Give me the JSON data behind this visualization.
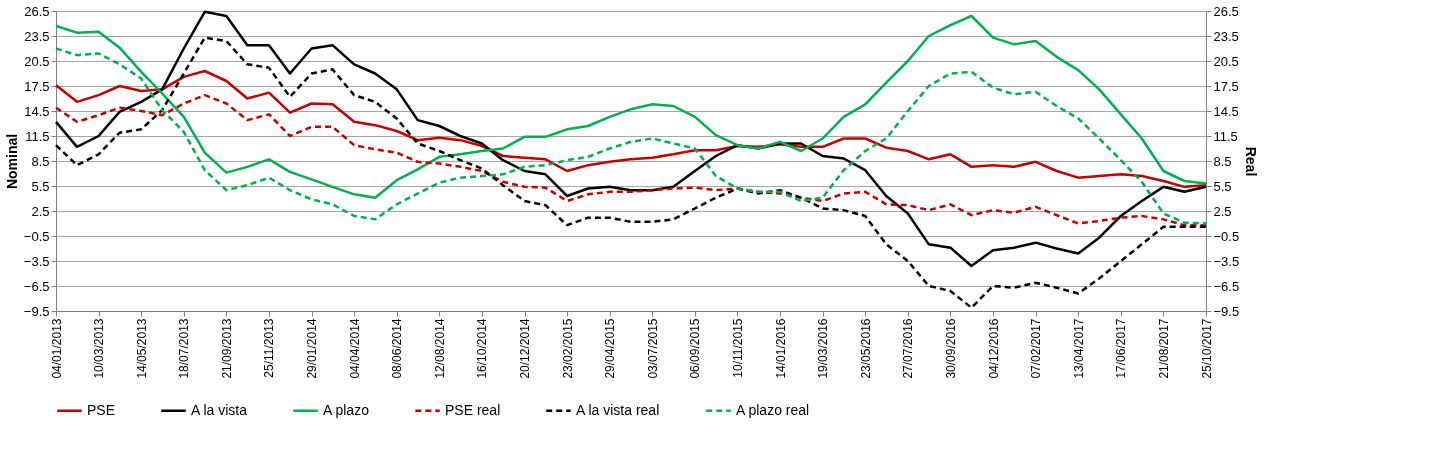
{
  "chart_data": {
    "type": "line",
    "ylabel": "Nominal",
    "y2label": "Real",
    "x": [
      "2013-01-04",
      "2013-02-05",
      "2013-03-10",
      "2013-04-11",
      "2013-05-14",
      "2013-06-15",
      "2013-07-18",
      "2013-08-19",
      "2013-09-21",
      "2013-10-23",
      "2013-11-25",
      "2013-12-27",
      "2014-01-29",
      "2014-03-02",
      "2014-04-04",
      "2014-05-06",
      "2014-06-08",
      "2014-07-10",
      "2014-08-12",
      "2014-09-13",
      "2014-10-16",
      "2014-11-17",
      "2014-12-20",
      "2015-01-21",
      "2015-02-23",
      "2015-03-27",
      "2015-04-29",
      "2015-05-31",
      "2015-07-03",
      "2015-08-04",
      "2015-09-06",
      "2015-10-08",
      "2015-11-10",
      "2015-12-12",
      "2016-01-14",
      "2016-02-15",
      "2016-03-19",
      "2016-04-20",
      "2016-05-23",
      "2016-06-24",
      "2016-07-27",
      "2016-08-28",
      "2016-09-30",
      "2016-11-01",
      "2016-12-04",
      "2017-01-05",
      "2017-02-07",
      "2017-03-11",
      "2017-04-13",
      "2017-05-15",
      "2017-06-17",
      "2017-07-19",
      "2017-08-21",
      "2017-09-22",
      "2017-10-25"
    ],
    "series": [
      {
        "name": "PSE",
        "color": "#c00000",
        "line_style": "solid",
        "values": [
          17.6,
          15.6,
          16.4,
          17.5,
          16.9,
          17.1,
          18.6,
          19.3,
          18.1,
          16.0,
          16.7,
          14.3,
          15.4,
          15.3,
          13.2,
          12.8,
          12.1,
          11.0,
          11.3,
          11.0,
          10.3,
          9.1,
          8.9,
          8.7,
          7.3,
          8.0,
          8.4,
          8.7,
          8.9,
          9.3,
          9.8,
          9.8,
          10.3,
          10.2,
          10.5,
          10.2,
          10.2,
          11.2,
          11.2,
          10.1,
          9.7,
          8.7,
          9.3,
          7.8,
          8.0,
          7.8,
          8.4,
          7.3,
          6.5,
          6.7,
          6.9,
          6.7,
          6.1,
          5.4,
          5.6
        ]
      },
      {
        "name": "A la vista",
        "color": "#000000",
        "line_style": "solid",
        "values": [
          13.2,
          10.2,
          11.5,
          14.4,
          15.6,
          17.1,
          22.0,
          26.4,
          25.9,
          22.4,
          22.4,
          19.0,
          22.0,
          22.4,
          20.1,
          19.0,
          17.1,
          13.4,
          12.7,
          11.5,
          10.6,
          8.6,
          7.3,
          6.9,
          4.3,
          5.2,
          5.4,
          5.0,
          5.0,
          5.4,
          7.3,
          9.1,
          10.4,
          10.0,
          10.6,
          10.6,
          9.1,
          8.8,
          7.4,
          4.3,
          2.2,
          -1.5,
          -1.9,
          -4.1,
          -2.2,
          -1.9,
          -1.3,
          -2.0,
          -2.6,
          -0.7,
          1.9,
          3.7,
          5.4,
          4.8,
          5.4
        ]
      },
      {
        "name": "A plazo",
        "color": "#00b050",
        "line_style": "solid",
        "values": [
          24.7,
          23.9,
          24.0,
          22.1,
          19.2,
          16.6,
          13.8,
          9.5,
          7.1,
          7.8,
          8.7,
          7.2,
          6.3,
          5.4,
          4.5,
          4.1,
          6.2,
          7.5,
          9.0,
          9.3,
          9.7,
          10.0,
          11.4,
          11.4,
          12.3,
          12.7,
          13.8,
          14.7,
          15.3,
          15.1,
          13.8,
          11.6,
          10.4,
          10.0,
          10.8,
          9.7,
          11.2,
          13.8,
          15.3,
          17.9,
          20.5,
          23.5,
          24.8,
          25.9,
          23.3,
          22.5,
          22.9,
          21.0,
          19.4,
          17.1,
          14.1,
          11.2,
          7.3,
          6.1,
          5.8
        ]
      },
      {
        "name": "PSE real",
        "color": "#c00000",
        "line_style": "dashed",
        "axis": "y2",
        "values": [
          14.9,
          13.2,
          14.0,
          14.9,
          14.5,
          14.0,
          15.4,
          16.4,
          15.4,
          13.4,
          14.1,
          11.5,
          12.6,
          12.6,
          10.4,
          9.9,
          9.5,
          8.4,
          8.2,
          7.8,
          7.3,
          6.0,
          5.4,
          5.3,
          3.7,
          4.5,
          4.8,
          4.8,
          5.0,
          5.2,
          5.3,
          5.0,
          5.2,
          4.8,
          4.6,
          4.1,
          3.7,
          4.6,
          4.8,
          3.3,
          3.2,
          2.6,
          3.3,
          2.0,
          2.6,
          2.3,
          3.0,
          2.0,
          1.0,
          1.3,
          1.7,
          1.9,
          1.5,
          0.8,
          0.8
        ]
      },
      {
        "name": "A la vista real",
        "color": "#000000",
        "line_style": "dashed",
        "axis": "y2",
        "values": [
          10.4,
          8.0,
          9.3,
          11.9,
          12.3,
          14.6,
          19.0,
          23.3,
          22.9,
          20.1,
          19.7,
          16.2,
          19.0,
          19.5,
          16.4,
          15.6,
          13.6,
          10.6,
          9.7,
          8.6,
          7.6,
          5.6,
          3.7,
          3.2,
          0.8,
          1.7,
          1.7,
          1.2,
          1.2,
          1.5,
          2.8,
          4.1,
          5.2,
          4.6,
          5.0,
          4.1,
          2.8,
          2.6,
          1.9,
          -1.5,
          -3.5,
          -6.5,
          -7.1,
          -9.1,
          -6.5,
          -6.7,
          -6.1,
          -6.7,
          -7.4,
          -5.6,
          -3.5,
          -1.5,
          0.6,
          0.6,
          0.6
        ]
      },
      {
        "name": "A plazo real",
        "color": "#00b050",
        "line_style": "dashed",
        "axis": "y2",
        "values": [
          22.0,
          21.2,
          21.4,
          20.1,
          18.4,
          14.6,
          12.0,
          7.4,
          5.0,
          5.6,
          6.5,
          5.0,
          3.9,
          3.3,
          1.9,
          1.5,
          3.3,
          4.6,
          5.9,
          6.5,
          6.7,
          6.9,
          7.8,
          8.0,
          8.6,
          9.0,
          10.0,
          10.8,
          11.2,
          10.6,
          10.0,
          6.7,
          5.2,
          4.8,
          4.8,
          3.7,
          4.1,
          7.4,
          9.7,
          11.2,
          14.5,
          17.5,
          19.0,
          19.2,
          17.3,
          16.5,
          16.8,
          15.1,
          13.6,
          11.2,
          8.6,
          6.0,
          2.2,
          1.1,
          1.0
        ]
      }
    ],
    "xlim": [
      "2013-01-04",
      "2017-10-25"
    ],
    "xticks": [
      {
        "value": "2013-01-04",
        "label": "04/01/2013"
      },
      {
        "value": "2013-03-10",
        "label": "10/03/2013"
      },
      {
        "value": "2013-05-14",
        "label": "14/05/2013"
      },
      {
        "value": "2013-07-18",
        "label": "18/07/2013"
      },
      {
        "value": "2013-09-21",
        "label": "21/09/2013"
      },
      {
        "value": "2013-11-25",
        "label": "25/11/2013"
      },
      {
        "value": "2014-01-29",
        "label": "29/01/2014"
      },
      {
        "value": "2014-04-04",
        "label": "04/04/2014"
      },
      {
        "value": "2014-06-08",
        "label": "08/06/2014"
      },
      {
        "value": "2014-08-12",
        "label": "12/08/2014"
      },
      {
        "value": "2014-10-16",
        "label": "16/10/2014"
      },
      {
        "value": "2014-12-20",
        "label": "20/12/2014"
      },
      {
        "value": "2015-02-23",
        "label": "23/02/2015"
      },
      {
        "value": "2015-04-29",
        "label": "29/04/2015"
      },
      {
        "value": "2015-07-03",
        "label": "03/07/2015"
      },
      {
        "value": "2015-09-06",
        "label": "06/09/2015"
      },
      {
        "value": "2015-11-10",
        "label": "10/11/2015"
      },
      {
        "value": "2016-01-14",
        "label": "14/01/2016"
      },
      {
        "value": "2016-03-19",
        "label": "19/03/2016"
      },
      {
        "value": "2016-05-23",
        "label": "23/05/2016"
      },
      {
        "value": "2016-07-27",
        "label": "27/07/2016"
      },
      {
        "value": "2016-09-30",
        "label": "30/09/2016"
      },
      {
        "value": "2016-12-04",
        "label": "04/12/2016"
      },
      {
        "value": "2017-02-07",
        "label": "07/02/2017"
      },
      {
        "value": "2017-04-13",
        "label": "13/04/2017"
      },
      {
        "value": "2017-06-17",
        "label": "17/06/2017"
      },
      {
        "value": "2017-08-21",
        "label": "21/08/2017"
      },
      {
        "value": "2017-10-25",
        "label": "25/10/2017"
      }
    ],
    "ylim": [
      -9.5,
      26.5
    ],
    "yticks": [
      -9.5,
      -6.5,
      -3.5,
      -0.5,
      2.5,
      5.5,
      8.5,
      11.5,
      14.5,
      17.5,
      20.5,
      23.5,
      26.5
    ],
    "y2lim": [
      -9.5,
      26.5
    ],
    "y2ticks": [
      -9.5,
      -6.5,
      -3.5,
      -0.5,
      2.5,
      5.5,
      8.5,
      11.5,
      14.5,
      17.5,
      20.5,
      23.5,
      26.5
    ],
    "grid": "y",
    "legend": "bottom"
  }
}
